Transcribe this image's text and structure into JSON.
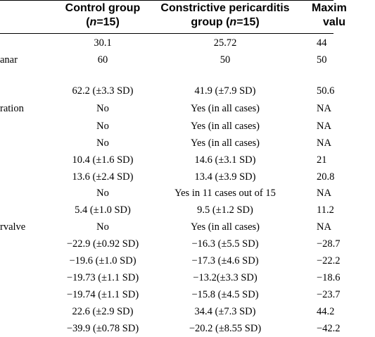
{
  "header": {
    "col1_line1": "Control group",
    "col1_line2": "(n=15)",
    "col2_line1": "Constrictive pericarditis",
    "col2_line2": "group (n=15)",
    "col3_line1": "Maxim",
    "col3_line2": "valu"
  },
  "rows": [
    {
      "label": "",
      "control": "30.1",
      "cp": "25.72",
      "max": "44"
    },
    {
      "label": "anar",
      "control": "60",
      "cp": "50",
      "max": "50"
    },
    {
      "label": "",
      "control": "",
      "cp": "",
      "max": ""
    },
    {
      "label": "",
      "control": "62.2 (±3.3 SD)",
      "cp": "41.9 (±7.9 SD)",
      "max": "50.6"
    },
    {
      "label": "ration",
      "control": "No",
      "cp": "Yes (in all cases)",
      "max": "NA"
    },
    {
      "label": "",
      "control": "No",
      "cp": "Yes (in all cases)",
      "max": "NA"
    },
    {
      "label": "",
      "control": "No",
      "cp": "Yes (in all cases)",
      "max": "NA"
    },
    {
      "label": "",
      "control": "10.4 (±1.6 SD)",
      "cp": "14.6 (±3.1 SD)",
      "max": "21"
    },
    {
      "label": "",
      "control": "13.6 (±2.4 SD)",
      "cp": "13.4 (±3.9 SD)",
      "max": "20.8"
    },
    {
      "label": "",
      "control": "No",
      "cp": "Yes in 11 cases out of 15",
      "max": "NA"
    },
    {
      "label": "",
      "control": "5.4 (±1.0 SD)",
      "cp": "9.5 (±1.2 SD)",
      "max": "11.2"
    },
    {
      "label": "rvalve",
      "control": "No",
      "cp": "Yes (in all cases)",
      "max": "NA"
    },
    {
      "label": "",
      "control": "−22.9 (±0.92 SD)",
      "cp": "−16.3 (±5.5 SD)",
      "max": "−28.7"
    },
    {
      "label": "",
      "control": "−19.6 (±1.0 SD)",
      "cp": "−17.3 (±4.6 SD)",
      "max": "−22.2"
    },
    {
      "label": "",
      "control": "−19.73 (±1.1 SD)",
      "cp": "−13.2(±3.3 SD)",
      "max": "−18.6"
    },
    {
      "label": "",
      "control": "−19.74 (±1.1 SD)",
      "cp": "−15.8 (±4.5 SD)",
      "max": "−23.7"
    },
    {
      "label": "",
      "control": "22.6 (±2.9 SD)",
      "cp": "34.4 (±7.3 SD)",
      "max": "44.2"
    },
    {
      "label": "",
      "control": "−39.9 (±0.78 SD)",
      "cp": "−20.2 (±8.55 SD)",
      "max": "−42.2"
    }
  ]
}
